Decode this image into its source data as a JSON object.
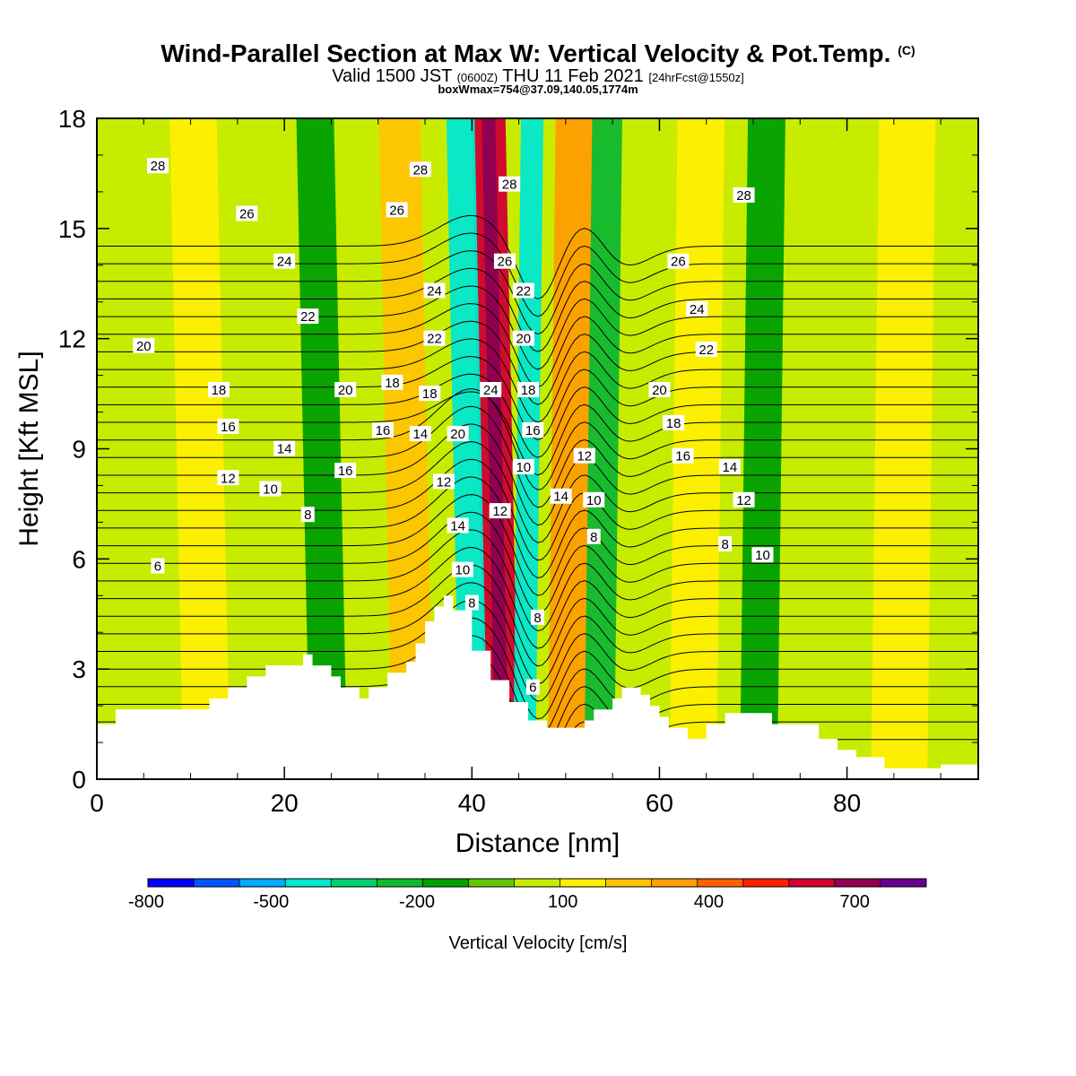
{
  "title": {
    "main": "Wind-Parallel Section at Max W: Vertical Velocity & Pot.Temp.",
    "copyright": "(C)",
    "valid_prefix": "Valid 1500 JST",
    "utc": "(0600Z)",
    "valid_date": "THU 11 Feb 2021",
    "forecast": "[24hrFcst@1550z]",
    "box": "boxWmax=754@37.09,140.05,1774m"
  },
  "chart_data": {
    "type": "heatmap",
    "xlabel": "Distance [nm]",
    "ylabel": "Height [Kft MSL]",
    "xlim": [
      0,
      94
    ],
    "ylim": [
      0,
      18
    ],
    "x_ticks": [
      "0",
      "20",
      "40",
      "60",
      "80"
    ],
    "y_ticks": [
      "0",
      "3",
      "6",
      "9",
      "12",
      "15",
      "18"
    ],
    "colorbar": {
      "label": "Vertical Velocity [cm/s]",
      "tick_labels": [
        "-800",
        "-500",
        "-200",
        "100",
        "400",
        "700"
      ],
      "tick_values": [
        -800,
        -500,
        -200,
        100,
        400,
        700
      ],
      "bins": [
        -800,
        -700,
        -600,
        -500,
        -400,
        -300,
        -200,
        -100,
        0,
        100,
        200,
        300,
        400,
        500,
        600,
        700,
        800
      ],
      "colors": [
        "#0000ff",
        "#0055ff",
        "#00aaff",
        "#00e8d0",
        "#00d070",
        "#10b830",
        "#00a000",
        "#60c800",
        "#c8ec00",
        "#fff000",
        "#ffc400",
        "#ff9e00",
        "#ff6000",
        "#ff2000",
        "#d00030",
        "#900050",
        "#6a0090"
      ]
    },
    "background_color": "#c8ec00",
    "velocity_bands": [
      {
        "x": 42.5,
        "halfwidth": 1.8,
        "value": 600,
        "core": 750
      },
      {
        "x": 46.0,
        "halfwidth": 1.2,
        "value": -500
      },
      {
        "x": 39.5,
        "halfwidth": 1.5,
        "value": -450
      },
      {
        "x": 50.5,
        "halfwidth": 2.0,
        "value": 350
      },
      {
        "x": 54.0,
        "halfwidth": 1.6,
        "value": -250
      },
      {
        "x": 33.0,
        "halfwidth": 2.2,
        "value": 200
      },
      {
        "x": 24.0,
        "halfwidth": 2.0,
        "value": -200
      },
      {
        "x": 11.0,
        "halfwidth": 2.5,
        "value": 120
      },
      {
        "x": 64.0,
        "halfwidth": 2.5,
        "value": 150
      },
      {
        "x": 71.0,
        "halfwidth": 2.0,
        "value": -120
      },
      {
        "x": 86.0,
        "halfwidth": 3.0,
        "value": 100
      }
    ],
    "terrain": {
      "x": [
        0,
        2,
        2,
        12,
        12,
        14,
        14,
        16,
        16,
        18,
        18,
        22,
        22,
        23,
        23,
        25,
        25,
        26,
        26,
        28,
        28,
        29,
        29,
        31,
        31,
        33,
        33,
        34,
        34,
        35,
        35,
        36,
        36,
        37,
        37,
        38,
        38,
        40,
        40,
        42,
        42,
        44,
        44,
        46,
        46,
        48,
        48,
        52,
        52,
        53,
        53,
        55,
        55,
        56,
        56,
        58,
        58,
        59,
        59,
        60,
        60,
        61,
        61,
        63,
        63,
        65,
        65,
        67,
        67,
        72,
        72,
        77,
        77,
        79,
        79,
        81,
        81,
        84,
        84,
        90,
        90,
        94
      ],
      "y": [
        1.5,
        1.5,
        1.9,
        1.9,
        2.2,
        2.2,
        2.5,
        2.5,
        2.8,
        2.8,
        3.1,
        3.1,
        3.4,
        3.4,
        3.1,
        3.1,
        2.8,
        2.8,
        2.5,
        2.5,
        2.2,
        2.2,
        2.5,
        2.5,
        2.9,
        2.9,
        3.2,
        3.2,
        3.7,
        3.7,
        4.3,
        4.3,
        4.7,
        4.7,
        5.0,
        5.0,
        4.6,
        4.6,
        3.5,
        3.5,
        2.7,
        2.7,
        2.1,
        2.1,
        1.6,
        1.6,
        1.4,
        1.4,
        1.6,
        1.6,
        1.9,
        1.9,
        2.2,
        2.2,
        2.5,
        2.5,
        2.3,
        2.3,
        2.0,
        2.0,
        1.7,
        1.7,
        1.4,
        1.4,
        1.1,
        1.1,
        1.5,
        1.5,
        1.8,
        1.8,
        1.5,
        1.5,
        1.1,
        1.1,
        0.8,
        0.8,
        0.6,
        0.6,
        0.3,
        0.3,
        0.4,
        0.4
      ]
    },
    "theta_contours": [
      {
        "label": "6",
        "level": 6,
        "label_pos": [
          6.5,
          5.8
        ]
      },
      {
        "label": "8",
        "level": 8,
        "label_pos": [
          22.5,
          7.2
        ]
      },
      {
        "label": "10",
        "level": 10,
        "label_pos": [
          18.5,
          7.9
        ]
      },
      {
        "label": "12",
        "level": 12,
        "label_pos": [
          14.0,
          8.2
        ]
      },
      {
        "label": "14",
        "level": 14,
        "label_pos": [
          20.0,
          9.0
        ]
      },
      {
        "label": "16",
        "level": 16,
        "label_pos": [
          14.0,
          9.6
        ]
      },
      {
        "label": "18",
        "level": 18,
        "label_pos": [
          13.0,
          10.6
        ]
      },
      {
        "label": "20",
        "level": 20,
        "label_pos": [
          5.0,
          11.8
        ]
      },
      {
        "label": "22",
        "level": 22,
        "label_pos": [
          22.5,
          12.6
        ]
      },
      {
        "label": "24",
        "level": 24,
        "label_pos": [
          20.0,
          14.1
        ]
      },
      {
        "label": "26",
        "level": 26,
        "label_pos": [
          16.0,
          15.4
        ]
      },
      {
        "label": "28",
        "level": 28,
        "label_pos": [
          6.5,
          16.7
        ]
      },
      {
        "label": "28",
        "level": 28,
        "label_pos": [
          69.0,
          15.9
        ]
      },
      {
        "label": "26",
        "level": 26,
        "label_pos": [
          62.0,
          14.1
        ]
      },
      {
        "label": "24",
        "level": 24,
        "label_pos": [
          64.0,
          12.8
        ]
      },
      {
        "label": "22",
        "level": 22,
        "label_pos": [
          65.0,
          11.7
        ]
      },
      {
        "label": "20",
        "level": 20,
        "label_pos": [
          60.0,
          10.6
        ]
      },
      {
        "label": "18",
        "level": 18,
        "label_pos": [
          61.5,
          9.7
        ]
      },
      {
        "label": "16",
        "level": 16,
        "label_pos": [
          62.5,
          8.8
        ]
      },
      {
        "label": "14",
        "level": 14,
        "label_pos": [
          67.5,
          8.5
        ]
      },
      {
        "label": "12",
        "level": 12,
        "label_pos": [
          69.0,
          7.6
        ]
      },
      {
        "label": "10",
        "level": 10,
        "label_pos": [
          71.0,
          6.1
        ]
      },
      {
        "label": "8",
        "level": 8,
        "label_pos": [
          67.0,
          6.4
        ]
      },
      {
        "label": "28",
        "level": 28,
        "label_pos": [
          34.5,
          16.6
        ]
      },
      {
        "label": "26",
        "level": 26,
        "label_pos": [
          32.0,
          15.5
        ]
      },
      {
        "label": "24",
        "level": 24,
        "label_pos": [
          36.0,
          13.3
        ]
      },
      {
        "label": "22",
        "level": 22,
        "label_pos": [
          36.0,
          12.0
        ]
      },
      {
        "label": "20",
        "level": 20,
        "label_pos": [
          26.5,
          10.6
        ]
      },
      {
        "label": "18",
        "level": 18,
        "label_pos": [
          31.5,
          10.8
        ]
      },
      {
        "label": "18",
        "level": 18,
        "label_pos": [
          35.5,
          10.5
        ]
      },
      {
        "label": "16",
        "level": 16,
        "label_pos": [
          30.5,
          9.5
        ]
      },
      {
        "label": "14",
        "level": 14,
        "label_pos": [
          34.5,
          9.4
        ]
      },
      {
        "label": "16",
        "level": 16,
        "label_pos": [
          26.5,
          8.4
        ]
      },
      {
        "label": "20",
        "level": 20,
        "label_pos": [
          38.5,
          9.4
        ]
      },
      {
        "label": "12",
        "level": 12,
        "label_pos": [
          37.0,
          8.1
        ]
      },
      {
        "label": "14",
        "level": 14,
        "label_pos": [
          38.5,
          6.9
        ]
      },
      {
        "label": "10",
        "level": 10,
        "label_pos": [
          39.0,
          5.7
        ]
      },
      {
        "label": "8",
        "level": 8,
        "label_pos": [
          40.0,
          4.8
        ]
      },
      {
        "label": "24",
        "level": 24,
        "label_pos": [
          42.0,
          10.6
        ]
      },
      {
        "label": "12",
        "level": 12,
        "label_pos": [
          43.0,
          7.3
        ]
      },
      {
        "label": "28",
        "level": 28,
        "label_pos": [
          44.0,
          16.2
        ]
      },
      {
        "label": "26",
        "level": 26,
        "label_pos": [
          43.5,
          14.1
        ]
      },
      {
        "label": "22",
        "level": 22,
        "label_pos": [
          45.5,
          13.3
        ]
      },
      {
        "label": "20",
        "level": 20,
        "label_pos": [
          45.5,
          12.0
        ]
      },
      {
        "label": "18",
        "level": 18,
        "label_pos": [
          46.0,
          10.6
        ]
      },
      {
        "label": "16",
        "level": 16,
        "label_pos": [
          46.5,
          9.5
        ]
      },
      {
        "label": "10",
        "level": 10,
        "label_pos": [
          45.5,
          8.5
        ]
      },
      {
        "label": "14",
        "level": 14,
        "label_pos": [
          49.5,
          7.7
        ]
      },
      {
        "label": "12",
        "level": 12,
        "label_pos": [
          52.0,
          8.8
        ]
      },
      {
        "label": "10",
        "level": 10,
        "label_pos": [
          53.0,
          7.6
        ]
      },
      {
        "label": "8",
        "level": 8,
        "label_pos": [
          53.0,
          6.6
        ]
      },
      {
        "label": "8",
        "level": 8,
        "label_pos": [
          47.0,
          4.4
        ]
      },
      {
        "label": "6",
        "level": 6,
        "label_pos": [
          46.5,
          2.5
        ]
      }
    ]
  }
}
